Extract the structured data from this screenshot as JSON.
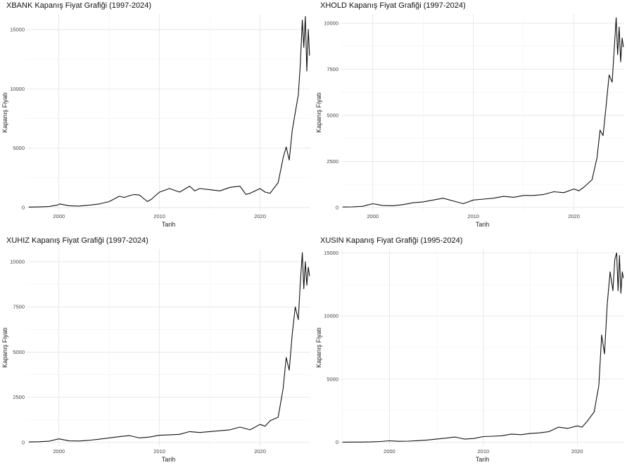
{
  "chart_data": [
    {
      "type": "line",
      "title": "XBANK Kapanış Fiyat Grafiği (1997-2024)",
      "xlabel": "Tarih",
      "ylabel": "Kapanış Fiyatı",
      "xlim": [
        1996.8,
        2025.0
      ],
      "ylim": [
        -300,
        16300
      ],
      "xticks": [
        2000,
        2010,
        2020
      ],
      "xtick_labels": [
        "2000",
        "2010",
        "2020"
      ],
      "yticks": [
        0,
        5000,
        10000,
        15000
      ],
      "ytick_labels": [
        "0",
        "5000",
        "10000",
        "15000"
      ],
      "grid": true,
      "series": [
        {
          "x": [
            1997,
            1998,
            1999,
            1999.8,
            2000.1,
            2001,
            2002,
            2003,
            2004,
            2005,
            2006,
            2006.5,
            2007,
            2007.5,
            2008,
            2008.8,
            2009.2,
            2010,
            2011,
            2012,
            2013,
            2013.5,
            2014,
            2015,
            2016,
            2017,
            2018,
            2018.6,
            2019,
            2020,
            2020.5,
            2021,
            2021.8,
            2022.3,
            2022.6,
            2022.9,
            2023.2,
            2023.5,
            2023.8,
            2024.0,
            2024.2,
            2024.35,
            2024.5,
            2024.65,
            2024.8,
            2024.92
          ],
          "y": [
            40,
            50,
            80,
            200,
            300,
            150,
            120,
            200,
            300,
            500,
            950,
            850,
            1000,
            1100,
            1050,
            500,
            700,
            1300,
            1600,
            1300,
            1800,
            1400,
            1600,
            1500,
            1400,
            1700,
            1800,
            1100,
            1200,
            1600,
            1300,
            1200,
            2100,
            4200,
            5100,
            4000,
            6500,
            8000,
            9500,
            12000,
            15800,
            13500,
            16100,
            11500,
            15000,
            12800
          ]
        }
      ]
    },
    {
      "type": "line",
      "title": "XHOLD Kapanış Fiyat Grafiği (1997-2024)",
      "xlabel": "Tarih",
      "ylabel": "Kapanış Fiyatı",
      "xlim": [
        1996.8,
        2025.0
      ],
      "ylim": [
        -200,
        10500
      ],
      "xticks": [
        2000,
        2010,
        2020
      ],
      "xtick_labels": [
        "2000",
        "2010",
        "2020"
      ],
      "yticks": [
        0,
        2500,
        5000,
        7500,
        10000
      ],
      "ytick_labels": [
        "0",
        "2500",
        "5000",
        "7500",
        "10000"
      ],
      "grid": true,
      "series": [
        {
          "x": [
            1997,
            1998,
            1999,
            2000,
            2001,
            2002,
            2003,
            2004,
            2005,
            2006,
            2007,
            2008,
            2009,
            2010,
            2011,
            2012,
            2013,
            2014,
            2015,
            2016,
            2017,
            2018,
            2019,
            2020,
            2020.5,
            2021,
            2021.8,
            2022.3,
            2022.6,
            2022.9,
            2023.2,
            2023.5,
            2023.8,
            2024.0,
            2024.2,
            2024.35,
            2024.5,
            2024.65,
            2024.8,
            2024.92
          ],
          "y": [
            20,
            30,
            60,
            200,
            100,
            90,
            150,
            250,
            300,
            400,
            500,
            350,
            200,
            400,
            450,
            500,
            600,
            550,
            650,
            650,
            700,
            850,
            800,
            1000,
            900,
            1100,
            1500,
            2700,
            4200,
            3900,
            5500,
            7200,
            6800,
            8500,
            10300,
            8300,
            9800,
            7900,
            9200,
            8700
          ]
        }
      ]
    },
    {
      "type": "line",
      "title": "XUHIZ Kapanış Fiyat Grafiği (1997-2024)",
      "xlabel": "Tarih",
      "ylabel": "Kapanış Fiyatı",
      "xlim": [
        1996.8,
        2025.0
      ],
      "ylim": [
        -200,
        10700
      ],
      "xticks": [
        2000,
        2010,
        2020
      ],
      "xtick_labels": [
        "2000",
        "2010",
        "2020"
      ],
      "yticks": [
        0,
        2500,
        5000,
        7500,
        10000
      ],
      "ytick_labels": [
        "0",
        "2500",
        "5000",
        "7500",
        "10000"
      ],
      "grid": true,
      "series": [
        {
          "x": [
            1997,
            1998,
            1999,
            2000,
            2001,
            2002,
            2003,
            2004,
            2005,
            2006,
            2007,
            2008,
            2009,
            2010,
            2011,
            2012,
            2013,
            2014,
            2015,
            2016,
            2017,
            2018,
            2019,
            2020,
            2020.5,
            2021,
            2021.8,
            2022.3,
            2022.6,
            2022.9,
            2023.2,
            2023.5,
            2023.8,
            2024.0,
            2024.2,
            2024.35,
            2024.5,
            2024.65,
            2024.8,
            2024.92
          ],
          "y": [
            30,
            40,
            70,
            200,
            90,
            80,
            120,
            180,
            250,
            320,
            380,
            250,
            300,
            400,
            420,
            450,
            600,
            550,
            600,
            650,
            700,
            850,
            700,
            1000,
            900,
            1200,
            1400,
            3000,
            4700,
            4000,
            6000,
            7500,
            6800,
            8800,
            10500,
            8500,
            10000,
            8700,
            9700,
            9200
          ]
        }
      ]
    },
    {
      "type": "line",
      "title": "XUSIN Kapanış Fiyat Grafiği (1995-2024)",
      "xlabel": "Tarih",
      "ylabel": "Kapanış Fiyatı",
      "xlim": [
        1994.8,
        2025.0
      ],
      "ylim": [
        -300,
        15300
      ],
      "xticks": [
        2000,
        2010,
        2020
      ],
      "xtick_labels": [
        "2000",
        "2010",
        "2020"
      ],
      "yticks": [
        0,
        5000,
        10000,
        15000
      ],
      "ytick_labels": [
        "0",
        "5000",
        "10000",
        "15000"
      ],
      "grid": true,
      "series": [
        {
          "x": [
            1995,
            1996,
            1997,
            1998,
            1999,
            2000,
            2001,
            2002,
            2003,
            2004,
            2005,
            2006,
            2007,
            2008,
            2009,
            2010,
            2011,
            2012,
            2013,
            2014,
            2015,
            2016,
            2017,
            2018,
            2019,
            2020,
            2020.5,
            2021,
            2021.8,
            2022.3,
            2022.6,
            2022.9,
            2023.2,
            2023.5,
            2023.8,
            2024.0,
            2024.2,
            2024.35,
            2024.5,
            2024.65,
            2024.8,
            2024.92
          ],
          "y": [
            10,
            15,
            20,
            30,
            60,
            120,
            80,
            90,
            130,
            180,
            250,
            330,
            420,
            250,
            300,
            450,
            480,
            520,
            650,
            600,
            700,
            750,
            850,
            1200,
            1100,
            1300,
            1200,
            1600,
            2400,
            4500,
            8500,
            7000,
            11000,
            13500,
            12000,
            14500,
            15000,
            12000,
            14800,
            11800,
            13500,
            13000
          ]
        }
      ]
    }
  ]
}
